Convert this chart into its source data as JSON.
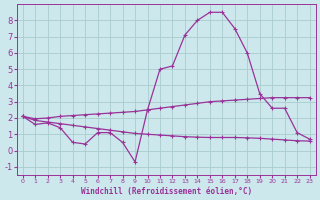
{
  "xlabel": "Windchill (Refroidissement éolien,°C)",
  "bg_color": "#cce8ec",
  "grid_color": "#aacccc",
  "line_color": "#993399",
  "xlim": [
    -0.5,
    23.5
  ],
  "ylim": [
    -1.5,
    9.0
  ],
  "yticks": [
    -1,
    0,
    1,
    2,
    3,
    4,
    5,
    6,
    7,
    8
  ],
  "xticks": [
    0,
    1,
    2,
    3,
    4,
    5,
    6,
    7,
    8,
    9,
    10,
    11,
    12,
    13,
    14,
    15,
    16,
    17,
    18,
    19,
    20,
    21,
    22,
    23
  ],
  "series1_x": [
    0,
    1,
    2,
    3,
    4,
    5,
    6,
    7,
    8,
    9,
    10,
    11,
    12,
    13,
    14,
    15,
    16,
    17,
    18,
    19,
    20,
    21,
    22,
    23
  ],
  "series1_y": [
    2.1,
    1.6,
    1.7,
    1.4,
    0.5,
    0.4,
    1.1,
    1.1,
    0.5,
    -0.7,
    2.5,
    5.0,
    5.2,
    7.1,
    8.0,
    8.5,
    8.5,
    7.5,
    6.0,
    3.5,
    2.6,
    2.6,
    1.1,
    0.7
  ],
  "series2_x": [
    0,
    1,
    2,
    3,
    4,
    5,
    6,
    7,
    8,
    9,
    10,
    11,
    12,
    13,
    14,
    15,
    16,
    17,
    18,
    19,
    20,
    21,
    22,
    23
  ],
  "series2_y": [
    2.1,
    1.95,
    2.0,
    2.1,
    2.15,
    2.2,
    2.25,
    2.3,
    2.35,
    2.4,
    2.5,
    2.6,
    2.7,
    2.8,
    2.9,
    3.0,
    3.05,
    3.1,
    3.15,
    3.2,
    3.25,
    3.25,
    3.25,
    3.25
  ],
  "series3_x": [
    0,
    1,
    2,
    3,
    4,
    5,
    6,
    7,
    8,
    9,
    10,
    11,
    12,
    13,
    14,
    15,
    16,
    17,
    18,
    19,
    20,
    21,
    22,
    23
  ],
  "series3_y": [
    2.1,
    1.85,
    1.75,
    1.65,
    1.55,
    1.45,
    1.35,
    1.25,
    1.15,
    1.05,
    1.0,
    0.95,
    0.9,
    0.85,
    0.82,
    0.8,
    0.8,
    0.8,
    0.78,
    0.75,
    0.7,
    0.65,
    0.6,
    0.58
  ]
}
